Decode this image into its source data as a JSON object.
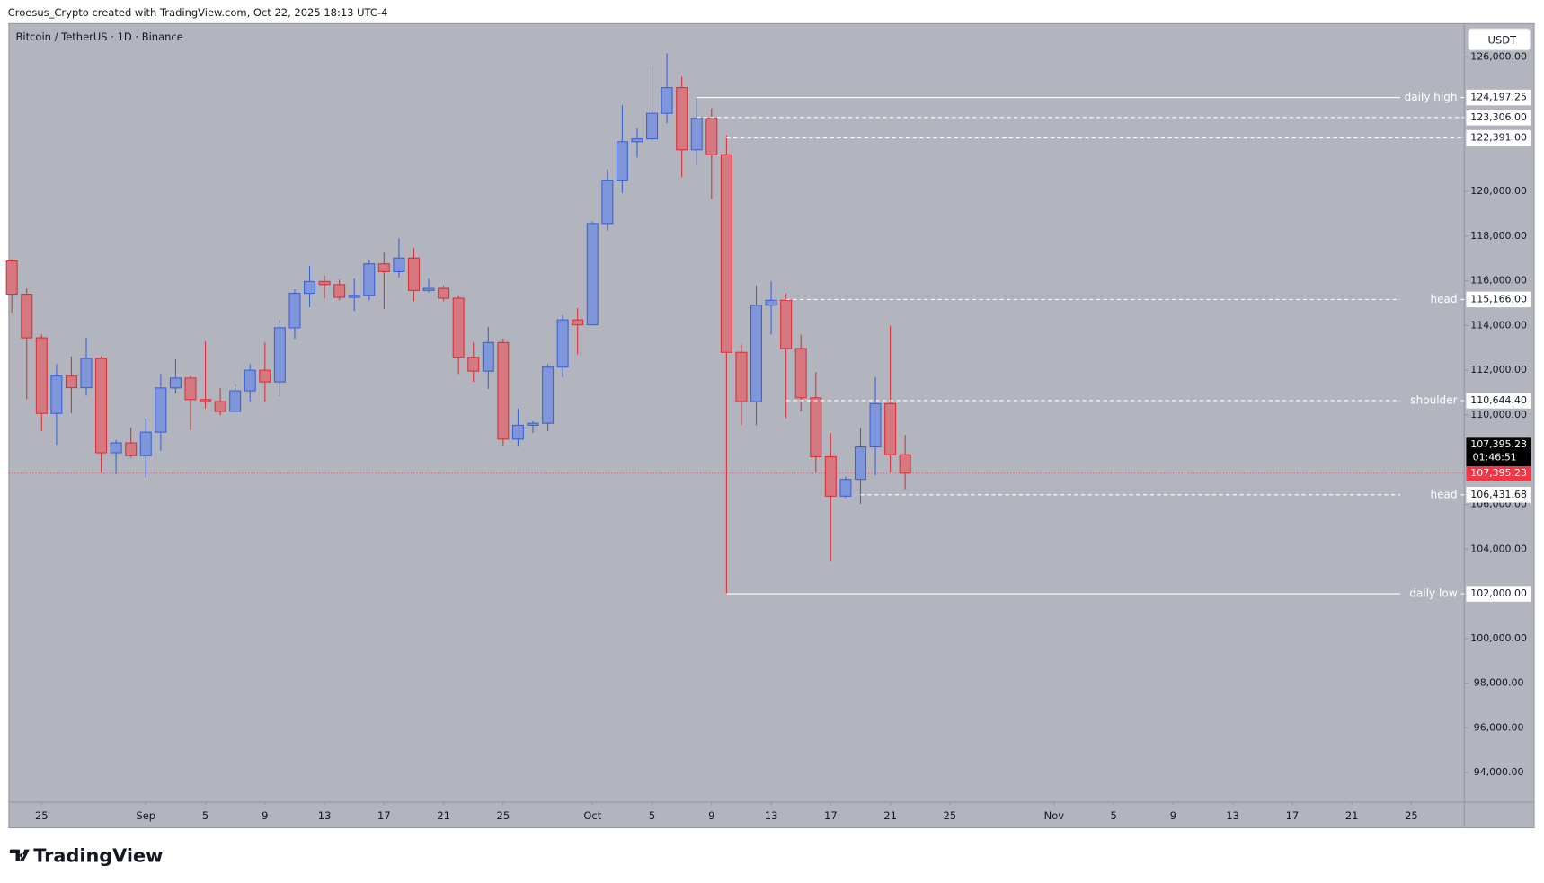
{
  "header": {
    "credit": "Croesus_Crypto created with TradingView.com, Oct 22, 2025 18:13 UTC-4",
    "logo": "TradingView"
  },
  "chart_data": {
    "type": "candlestick",
    "title": "Bitcoin / TetherUS · 1D · Binance",
    "currency": "USDT",
    "up_color": "#3d62d6",
    "up_fill": "#7f96da",
    "down_color": "#d8323a",
    "down_fill": "#d57880",
    "background": "#b2b5be",
    "open": [
      116890,
      115400,
      113450,
      110070,
      111740,
      111220,
      112530,
      108310,
      108750,
      108180,
      109230,
      111210,
      111650,
      110690,
      110600,
      110160,
      111080,
      112000,
      111480,
      113900,
      115440,
      115970,
      115830,
      115260,
      115350,
      116760,
      116410,
      117020,
      115570,
      115660,
      115220,
      112580,
      111960,
      113240,
      108920,
      109540,
      109630,
      112140,
      114250,
      114030,
      118560,
      120500,
      122220,
      122350,
      123490,
      124640,
      121860,
      123270,
      121640,
      112800,
      110600,
      114910,
      115130,
      112970,
      110770,
      108130,
      106370,
      107120,
      108570,
      110510,
      108220
    ],
    "high": [
      116950,
      115650,
      113600,
      112270,
      112620,
      113460,
      112620,
      108880,
      109450,
      109850,
      111830,
      112490,
      111740,
      113280,
      111210,
      111390,
      112270,
      113240,
      114250,
      115610,
      116670,
      116230,
      116050,
      116100,
      116930,
      117290,
      117900,
      117460,
      116100,
      115790,
      115350,
      113240,
      113940,
      113410,
      110290,
      109720,
      112270,
      114470,
      114780,
      118650,
      120980,
      123850,
      122830,
      125650,
      126180,
      125120,
      124150,
      123710,
      122520,
      113150,
      115790,
      115970,
      115440,
      113590,
      111920,
      109190,
      107250,
      109410,
      111700,
      113990,
      109100
    ],
    "low": [
      114560,
      110700,
      109280,
      108660,
      110070,
      110860,
      107430,
      107340,
      108090,
      107210,
      108400,
      110950,
      109320,
      110290,
      109980,
      110160,
      110600,
      110600,
      110860,
      113410,
      114820,
      115220,
      115130,
      114650,
      115130,
      114730,
      116140,
      115090,
      115480,
      115090,
      111830,
      111480,
      111170,
      108620,
      108620,
      109190,
      109280,
      111700,
      112710,
      114030,
      118250,
      119930,
      121510,
      122300,
      123050,
      120630,
      121160,
      119660,
      102000,
      109540,
      109540,
      113590,
      109850,
      110160,
      107430,
      103470,
      106280,
      106020,
      107300,
      107430,
      106680
    ],
    "close": [
      115400,
      113450,
      110070,
      111740,
      111220,
      112530,
      108310,
      108750,
      108180,
      109230,
      111210,
      111650,
      110690,
      110600,
      110160,
      111080,
      112000,
      111480,
      113900,
      115440,
      115970,
      115830,
      115260,
      115350,
      116760,
      116410,
      117020,
      115570,
      115660,
      115220,
      112580,
      111960,
      113240,
      108920,
      109540,
      109630,
      112140,
      114250,
      114030,
      118560,
      120500,
      122220,
      122350,
      123490,
      124640,
      121860,
      123270,
      121640,
      112800,
      110600,
      114910,
      115130,
      112970,
      110770,
      108130,
      106370,
      107120,
      108570,
      110510,
      108220,
      107395.23
    ],
    "xlim": [
      -0.2,
      97.55
    ],
    "xticks": [
      {
        "value": 2,
        "label": "25"
      },
      {
        "value": 9,
        "label": "Sep"
      },
      {
        "value": 13,
        "label": "5"
      },
      {
        "value": 17,
        "label": "9"
      },
      {
        "value": 21,
        "label": "13"
      },
      {
        "value": 25,
        "label": "17"
      },
      {
        "value": 29,
        "label": "21"
      },
      {
        "value": 33,
        "label": "25"
      },
      {
        "value": 39,
        "label": "Oct"
      },
      {
        "value": 43,
        "label": "5"
      },
      {
        "value": 47,
        "label": "9"
      },
      {
        "value": 51,
        "label": "13"
      },
      {
        "value": 55,
        "label": "17"
      },
      {
        "value": 59,
        "label": "21"
      },
      {
        "value": 63,
        "label": "25"
      },
      {
        "value": 70,
        "label": "Nov"
      },
      {
        "value": 74,
        "label": "5"
      },
      {
        "value": 78,
        "label": "9"
      },
      {
        "value": 82,
        "label": "13"
      },
      {
        "value": 86,
        "label": "17"
      },
      {
        "value": 90,
        "label": "21"
      },
      {
        "value": 94,
        "label": "25"
      }
    ],
    "ylim": [
      92680,
      127500
    ],
    "yticks": [
      {
        "value": 126000,
        "label": "126,000.00"
      },
      {
        "value": 120000,
        "label": "120,000.00"
      },
      {
        "value": 118000,
        "label": "118,000.00"
      },
      {
        "value": 116000,
        "label": "116,000.00"
      },
      {
        "value": 114000,
        "label": "114,000.00"
      },
      {
        "value": 112000,
        "label": "112,000.00"
      },
      {
        "value": 110000,
        "label": "110,000.00"
      },
      {
        "value": 106000,
        "label": "106,000.00"
      },
      {
        "value": 104000,
        "label": "104,000.00"
      },
      {
        "value": 100000,
        "label": "100,000.00"
      },
      {
        "value": 98000,
        "label": "98,000.00"
      },
      {
        "value": 96000,
        "label": "96,000.00"
      },
      {
        "value": 94000,
        "label": "94,000.00"
      }
    ],
    "levels": [
      {
        "value": 124197.25,
        "label": "124,197.25",
        "name": "daily high",
        "style": "solid",
        "from": 46
      },
      {
        "value": 123306,
        "label": "123,306.00",
        "style": "dashed",
        "from": 46
      },
      {
        "value": 122391,
        "label": "122,391.00",
        "style": "dashed",
        "from": 48
      },
      {
        "value": 115166,
        "label": "115,166.00",
        "name": "head",
        "style": "dashed",
        "from": 52
      },
      {
        "value": 110644.4,
        "label": "110,644.40",
        "name": "shoulder",
        "style": "dashed",
        "from": 52
      },
      {
        "value": 106431.68,
        "label": "106,431.68",
        "name": "head",
        "style": "dashed",
        "from": 57
      },
      {
        "value": 102000,
        "label": "102,000.00",
        "name": "daily low",
        "style": "solid",
        "from": 48
      }
    ],
    "last_price": {
      "value": 107395.23,
      "label": "107,395.23",
      "countdown": "01:46:51",
      "color": "#f23645"
    }
  }
}
